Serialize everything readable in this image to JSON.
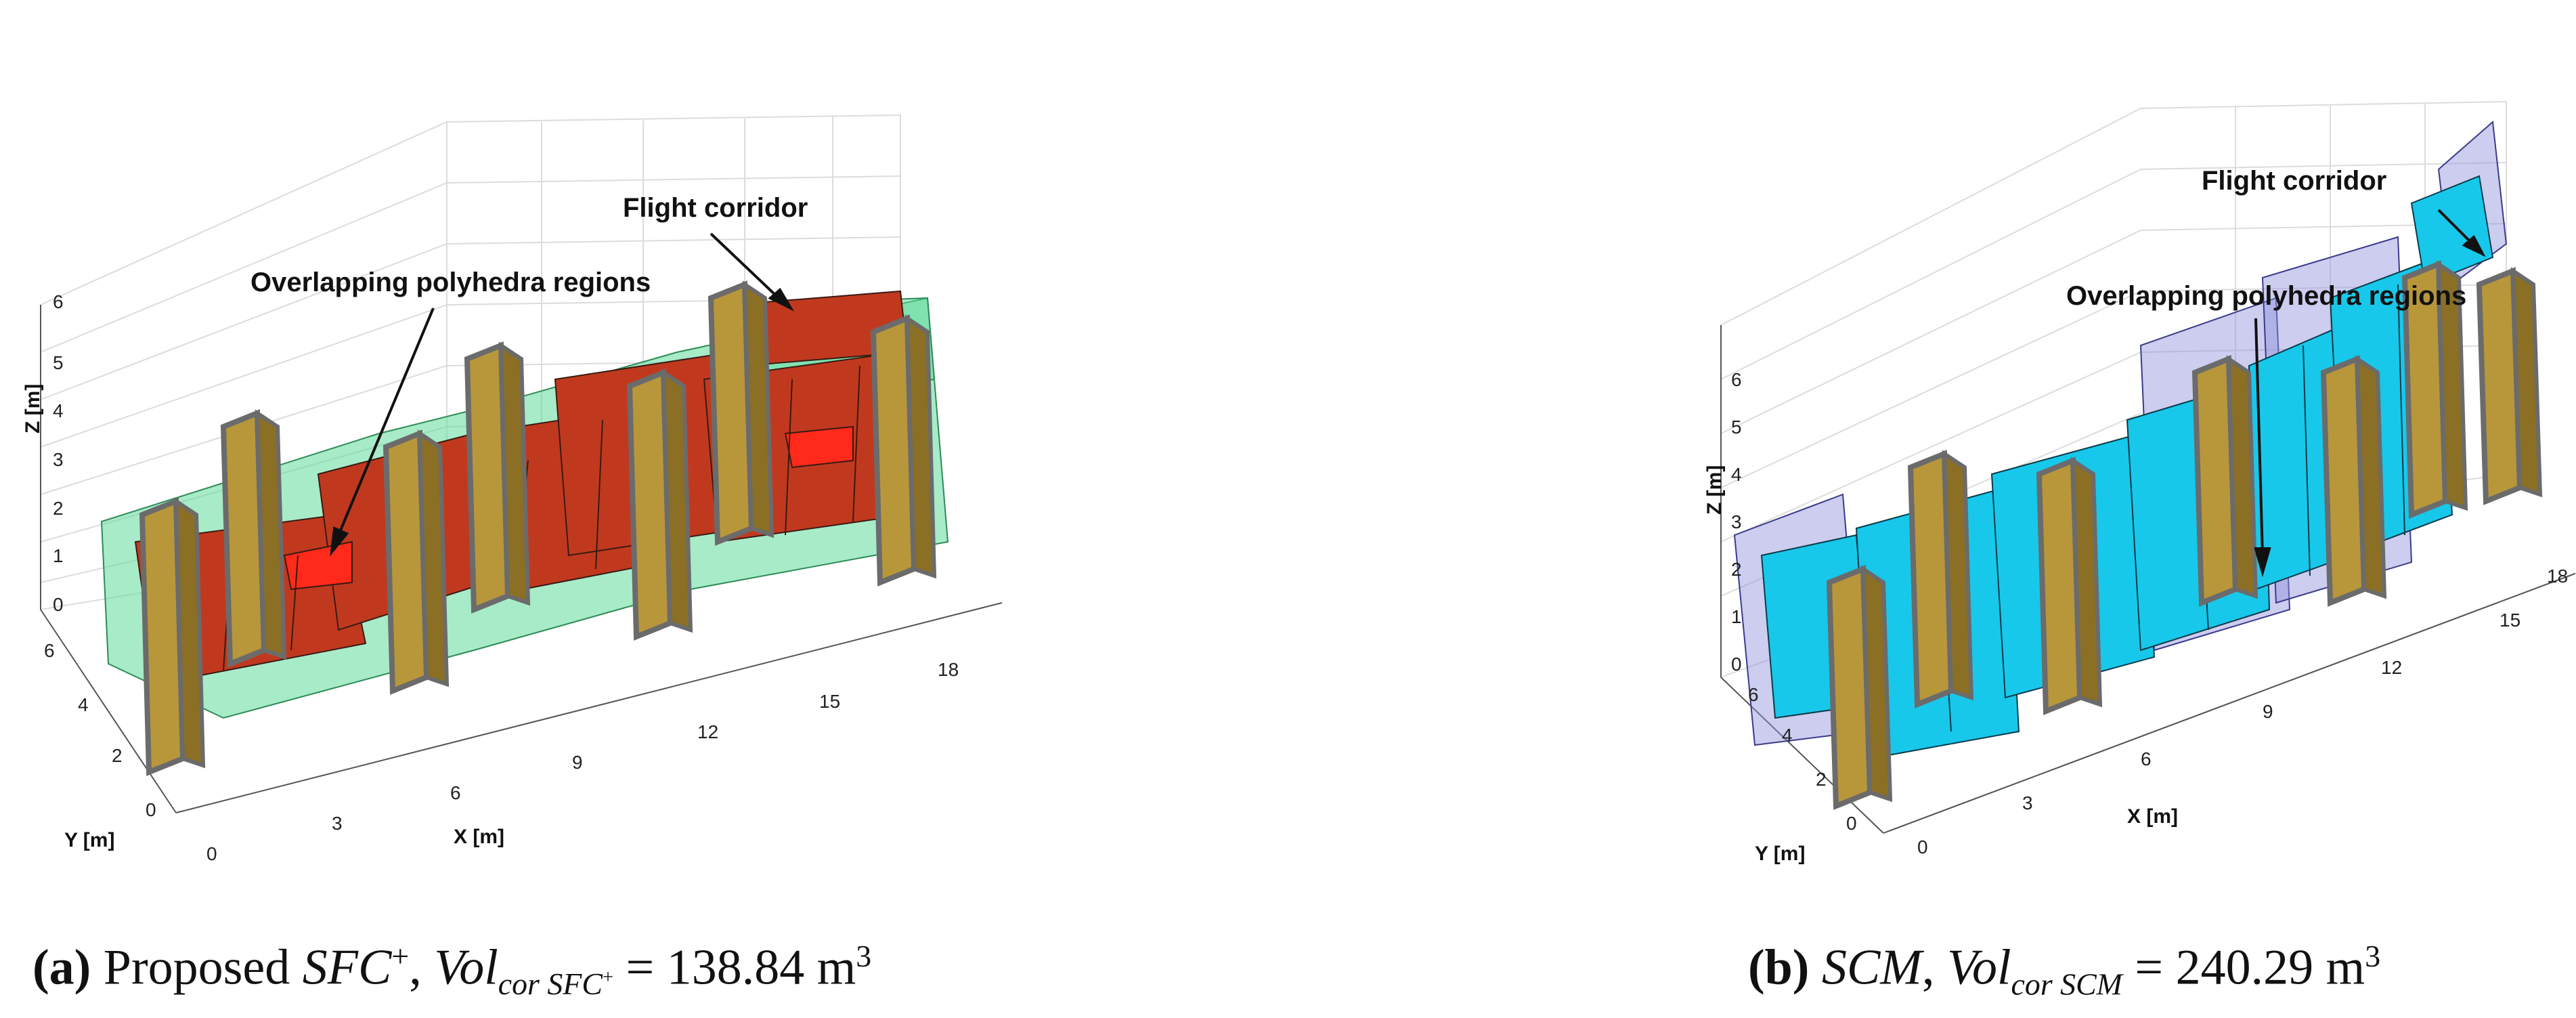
{
  "panels": [
    {
      "id": "a",
      "caption": {
        "label": "(a)",
        "text": "Proposed",
        "method": "SFC",
        "method_sup": "+",
        "vol_symbol": "Vol",
        "vol_sub": "cor SFC",
        "vol_sub_sup": "+",
        "equals": "=",
        "value": "138.84 m",
        "unit_sup": "3"
      },
      "annotations": {
        "overlap": "Overlapping polyhedra regions",
        "corridor": "Flight corridor"
      },
      "axes": {
        "x_label": "X [m]",
        "y_label": "Y [m]",
        "z_label": "Z [m]",
        "x_ticks": [
          "3",
          "6",
          "9",
          "12",
          "15",
          "18"
        ],
        "y_ticks": [
          "0",
          "2",
          "4",
          "6"
        ],
        "z_ticks": [
          "0",
          "1",
          "2",
          "3",
          "4",
          "5",
          "6"
        ],
        "origin_tick": "0"
      },
      "colors": {
        "region": "#c0391f",
        "corridor": "#5fdb9b",
        "wall": "#b8973a",
        "wall_edge": "#6b6b6b"
      }
    },
    {
      "id": "b",
      "caption": {
        "label": "(b)",
        "method": "SCM",
        "vol_symbol": "Vol",
        "vol_sub": "cor SCM",
        "equals": "=",
        "value": "240.29 m",
        "unit_sup": "3"
      },
      "annotations": {
        "overlap": "Overlapping polyhedra regions",
        "corridor": "Flight corridor"
      },
      "axes": {
        "x_label": "X [m]",
        "y_label": "Y [m]",
        "z_label": "Z [m]",
        "x_ticks": [
          "3",
          "6",
          "9",
          "12",
          "15",
          "18"
        ],
        "y_ticks": [
          "0",
          "2",
          "4",
          "6"
        ],
        "z_ticks": [
          "0",
          "1",
          "2",
          "3",
          "4",
          "5",
          "6"
        ],
        "origin_tick": "0"
      },
      "colors": {
        "region": "#17c8ea",
        "corridor": "#8e90db",
        "wall": "#b8973a",
        "wall_edge": "#6b6b6b"
      }
    }
  ]
}
